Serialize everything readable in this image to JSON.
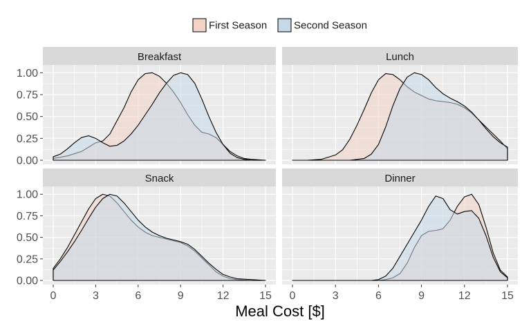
{
  "chart_data": {
    "type": "area",
    "chart_kind": "faceted-density",
    "xlabel": "Meal Cost [$]",
    "ylabel": "",
    "xlim": [
      0,
      15
    ],
    "ylim": [
      0,
      1.05
    ],
    "x_ticks": [
      0,
      3,
      6,
      9,
      12,
      15
    ],
    "y_ticks": [
      0,
      0.25,
      0.5,
      0.75,
      1.0
    ],
    "y_tick_labels": [
      "0.00",
      "0.25",
      "0.50",
      "0.75",
      "1.00"
    ],
    "grid": true,
    "legend": {
      "position": "top",
      "entries": [
        "First Season",
        "Second Season"
      ]
    },
    "colors": {
      "First Season": "#f2d3c6",
      "Second Season": "#c7d9e8",
      "panel_bg": "#ebebeb",
      "strip_bg": "#d9d9d9",
      "grid": "#ffffff"
    },
    "facets": [
      {
        "title": "Breakfast",
        "series": [
          {
            "name": "First Season",
            "points": [
              [
                0,
                0.02
              ],
              [
                1,
                0.05
              ],
              [
                2,
                0.1
              ],
              [
                2.5,
                0.15
              ],
              [
                3,
                0.2
              ],
              [
                3.5,
                0.22
              ],
              [
                4,
                0.3
              ],
              [
                4.5,
                0.45
              ],
              [
                5,
                0.6
              ],
              [
                5.5,
                0.78
              ],
              [
                6,
                0.92
              ],
              [
                6.5,
                0.99
              ],
              [
                7,
                1.0
              ],
              [
                7.5,
                0.96
              ],
              [
                8,
                0.88
              ],
              [
                8.5,
                0.78
              ],
              [
                9,
                0.66
              ],
              [
                9.5,
                0.52
              ],
              [
                10,
                0.4
              ],
              [
                10.5,
                0.32
              ],
              [
                11,
                0.3
              ],
              [
                11.5,
                0.26
              ],
              [
                12,
                0.18
              ],
              [
                12.5,
                0.1
              ],
              [
                13,
                0.05
              ],
              [
                13.5,
                0.02
              ],
              [
                14,
                0.01
              ],
              [
                15,
                0.0
              ]
            ]
          },
          {
            "name": "Second Season",
            "points": [
              [
                0,
                0.04
              ],
              [
                0.5,
                0.07
              ],
              [
                1,
                0.13
              ],
              [
                1.5,
                0.2
              ],
              [
                2,
                0.26
              ],
              [
                2.5,
                0.28
              ],
              [
                3,
                0.25
              ],
              [
                3.5,
                0.2
              ],
              [
                4,
                0.16
              ],
              [
                4.5,
                0.17
              ],
              [
                5,
                0.22
              ],
              [
                5.5,
                0.3
              ],
              [
                6,
                0.4
              ],
              [
                6.5,
                0.52
              ],
              [
                7,
                0.64
              ],
              [
                7.5,
                0.77
              ],
              [
                8,
                0.88
              ],
              [
                8.5,
                0.97
              ],
              [
                9,
                1.0
              ],
              [
                9.5,
                0.98
              ],
              [
                10,
                0.88
              ],
              [
                10.5,
                0.7
              ],
              [
                11,
                0.5
              ],
              [
                11.5,
                0.32
              ],
              [
                12,
                0.18
              ],
              [
                12.5,
                0.08
              ],
              [
                13,
                0.03
              ],
              [
                13.5,
                0.01
              ],
              [
                14,
                0.0
              ],
              [
                15,
                0.0
              ]
            ]
          }
        ]
      },
      {
        "title": "Lunch",
        "series": [
          {
            "name": "First Season",
            "points": [
              [
                0,
                0.0
              ],
              [
                1,
                0.0
              ],
              [
                2,
                0.01
              ],
              [
                3,
                0.06
              ],
              [
                3.5,
                0.12
              ],
              [
                4,
                0.24
              ],
              [
                4.5,
                0.4
              ],
              [
                5,
                0.58
              ],
              [
                5.5,
                0.77
              ],
              [
                6,
                0.92
              ],
              [
                6.5,
                0.99
              ],
              [
                7,
                0.98
              ],
              [
                7.5,
                0.92
              ],
              [
                8,
                0.84
              ],
              [
                8.5,
                0.78
              ],
              [
                9,
                0.74
              ],
              [
                9.5,
                0.7
              ],
              [
                10,
                0.68
              ],
              [
                10.5,
                0.67
              ],
              [
                11,
                0.66
              ],
              [
                11.5,
                0.64
              ],
              [
                12,
                0.6
              ],
              [
                12.5,
                0.54
              ],
              [
                13,
                0.46
              ],
              [
                13.5,
                0.38
              ],
              [
                14,
                0.3
              ],
              [
                14.5,
                0.22
              ],
              [
                15,
                0.13
              ]
            ]
          },
          {
            "name": "Second Season",
            "points": [
              [
                0,
                0.0
              ],
              [
                4,
                0.0
              ],
              [
                5,
                0.02
              ],
              [
                5.5,
                0.07
              ],
              [
                6,
                0.18
              ],
              [
                6.5,
                0.38
              ],
              [
                7,
                0.62
              ],
              [
                7.5,
                0.82
              ],
              [
                8,
                0.95
              ],
              [
                8.5,
                1.0
              ],
              [
                9,
                0.98
              ],
              [
                9.5,
                0.92
              ],
              [
                10,
                0.83
              ],
              [
                10.5,
                0.76
              ],
              [
                11,
                0.71
              ],
              [
                11.5,
                0.67
              ],
              [
                12,
                0.62
              ],
              [
                12.5,
                0.55
              ],
              [
                13,
                0.46
              ],
              [
                13.5,
                0.36
              ],
              [
                14,
                0.27
              ],
              [
                14.5,
                0.2
              ],
              [
                15,
                0.15
              ]
            ]
          }
        ]
      },
      {
        "title": "Snack",
        "series": [
          {
            "name": "First Season",
            "points": [
              [
                0,
                0.14
              ],
              [
                0.5,
                0.25
              ],
              [
                1,
                0.38
              ],
              [
                1.5,
                0.53
              ],
              [
                2,
                0.68
              ],
              [
                2.5,
                0.83
              ],
              [
                3,
                0.95
              ],
              [
                3.5,
                1.0
              ],
              [
                4,
                0.98
              ],
              [
                4.5,
                0.9
              ],
              [
                5,
                0.8
              ],
              [
                5.5,
                0.7
              ],
              [
                6,
                0.62
              ],
              [
                6.5,
                0.56
              ],
              [
                7,
                0.52
              ],
              [
                7.5,
                0.5
              ],
              [
                8,
                0.48
              ],
              [
                8.5,
                0.46
              ],
              [
                9,
                0.44
              ],
              [
                9.5,
                0.4
              ],
              [
                10,
                0.34
              ],
              [
                10.5,
                0.26
              ],
              [
                11,
                0.18
              ],
              [
                11.5,
                0.1
              ],
              [
                12,
                0.05
              ],
              [
                12.5,
                0.02
              ],
              [
                13,
                0.01
              ],
              [
                14,
                0.0
              ],
              [
                15,
                0.0
              ]
            ]
          },
          {
            "name": "Second Season",
            "points": [
              [
                0,
                0.12
              ],
              [
                0.5,
                0.22
              ],
              [
                1,
                0.33
              ],
              [
                1.5,
                0.45
              ],
              [
                2,
                0.58
              ],
              [
                2.5,
                0.72
              ],
              [
                3,
                0.85
              ],
              [
                3.5,
                0.95
              ],
              [
                4,
                1.0
              ],
              [
                4.5,
                0.98
              ],
              [
                5,
                0.9
              ],
              [
                5.5,
                0.8
              ],
              [
                6,
                0.7
              ],
              [
                6.5,
                0.62
              ],
              [
                7,
                0.56
              ],
              [
                7.5,
                0.52
              ],
              [
                8,
                0.49
              ],
              [
                8.5,
                0.47
              ],
              [
                9,
                0.45
              ],
              [
                9.5,
                0.42
              ],
              [
                10,
                0.36
              ],
              [
                10.5,
                0.28
              ],
              [
                11,
                0.2
              ],
              [
                11.5,
                0.13
              ],
              [
                12,
                0.07
              ],
              [
                12.5,
                0.04
              ],
              [
                13,
                0.02
              ],
              [
                14,
                0.01
              ],
              [
                15,
                0.0
              ]
            ]
          }
        ]
      },
      {
        "title": "Dinner",
        "series": [
          {
            "name": "First Season",
            "points": [
              [
                0,
                0.0
              ],
              [
                6,
                0.0
              ],
              [
                6.5,
                0.01
              ],
              [
                7,
                0.03
              ],
              [
                7.5,
                0.08
              ],
              [
                8,
                0.2
              ],
              [
                8.5,
                0.38
              ],
              [
                9,
                0.52
              ],
              [
                9.5,
                0.57
              ],
              [
                10,
                0.58
              ],
              [
                10.5,
                0.6
              ],
              [
                11,
                0.7
              ],
              [
                11.5,
                0.86
              ],
              [
                12,
                0.97
              ],
              [
                12.5,
                1.0
              ],
              [
                13,
                0.88
              ],
              [
                13.5,
                0.62
              ],
              [
                14,
                0.32
              ],
              [
                14.5,
                0.12
              ],
              [
                15,
                0.04
              ]
            ]
          },
          {
            "name": "Second Season",
            "points": [
              [
                0,
                0.0
              ],
              [
                5.5,
                0.0
              ],
              [
                6,
                0.01
              ],
              [
                6.5,
                0.05
              ],
              [
                7,
                0.14
              ],
              [
                7.5,
                0.28
              ],
              [
                8,
                0.42
              ],
              [
                8.5,
                0.56
              ],
              [
                9,
                0.7
              ],
              [
                9.5,
                0.86
              ],
              [
                10,
                0.98
              ],
              [
                10.5,
                0.95
              ],
              [
                11,
                0.82
              ],
              [
                11.5,
                0.77
              ],
              [
                12,
                0.8
              ],
              [
                12.5,
                0.81
              ],
              [
                13,
                0.72
              ],
              [
                13.5,
                0.52
              ],
              [
                14,
                0.27
              ],
              [
                14.5,
                0.1
              ],
              [
                15,
                0.03
              ]
            ]
          }
        ]
      }
    ]
  }
}
